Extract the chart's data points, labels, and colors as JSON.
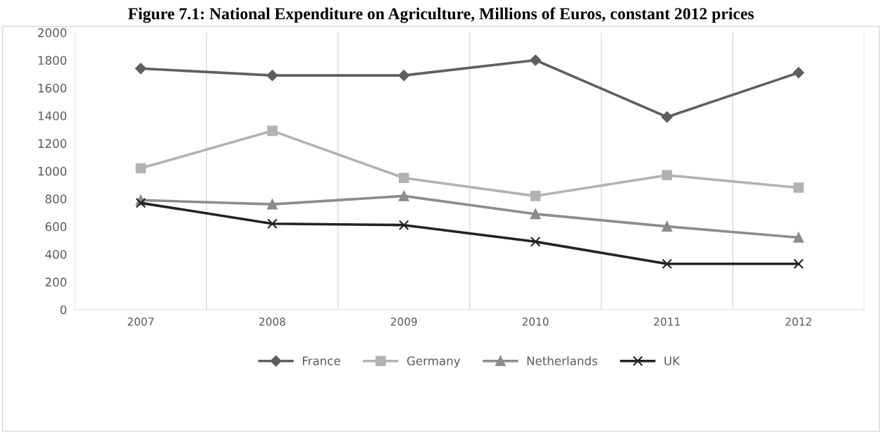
{
  "chart_data": {
    "type": "line",
    "title": "Figure 7.1: National Expenditure on Agriculture, Millions of Euros, constant 2012 prices",
    "categories": [
      "2007",
      "2008",
      "2009",
      "2010",
      "2011",
      "2012"
    ],
    "series": [
      {
        "name": "France",
        "color": "#5f5f5f",
        "marker": "diamond",
        "values": [
          1740,
          1690,
          1690,
          1800,
          1390,
          1710
        ]
      },
      {
        "name": "Germany",
        "color": "#b2b2b2",
        "marker": "square",
        "values": [
          1020,
          1290,
          950,
          820,
          970,
          880
        ]
      },
      {
        "name": "Netherlands",
        "color": "#8c8c8c",
        "marker": "triangle",
        "values": [
          790,
          760,
          820,
          690,
          600,
          520
        ]
      },
      {
        "name": "UK",
        "color": "#222222",
        "marker": "cross",
        "values": [
          770,
          620,
          610,
          490,
          330,
          330
        ]
      }
    ],
    "ylim": [
      0,
      2000
    ],
    "yticks": [
      0,
      200,
      400,
      600,
      800,
      1000,
      1200,
      1400,
      1600,
      1800,
      2000
    ],
    "grid": "x",
    "legend": "bottom"
  }
}
